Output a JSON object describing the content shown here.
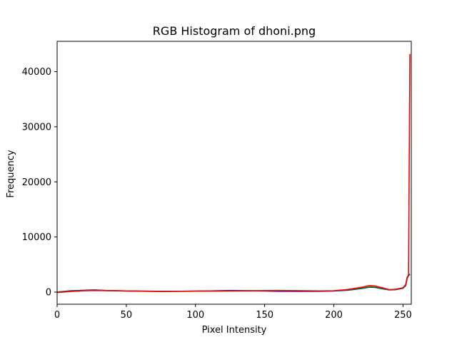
{
  "chart_data": {
    "type": "line",
    "title": "RGB Histogram of dhoni.png",
    "xlabel": "Pixel Intensity",
    "ylabel": "Frequency",
    "xlim": [
      0,
      256
    ],
    "ylim": [
      -2200,
      45500
    ],
    "xticks": [
      0,
      50,
      100,
      150,
      200,
      250
    ],
    "yticks": [
      0,
      10000,
      20000,
      30000,
      40000
    ],
    "grid": false,
    "legend": "none",
    "series": [
      {
        "color": "#0000ff",
        "points": [
          [
            0,
            0
          ],
          [
            10,
            250
          ],
          [
            20,
            330
          ],
          [
            27,
            400
          ],
          [
            35,
            300
          ],
          [
            50,
            220
          ],
          [
            60,
            180
          ],
          [
            75,
            130
          ],
          [
            90,
            160
          ],
          [
            110,
            220
          ],
          [
            125,
            300
          ],
          [
            140,
            250
          ],
          [
            150,
            200
          ],
          [
            160,
            150
          ],
          [
            175,
            140
          ],
          [
            190,
            150
          ],
          [
            200,
            200
          ],
          [
            210,
            350
          ],
          [
            220,
            650
          ],
          [
            226,
            900
          ],
          [
            230,
            850
          ],
          [
            235,
            600
          ],
          [
            240,
            400
          ],
          [
            245,
            450
          ],
          [
            250,
            700
          ],
          [
            252,
            1200
          ],
          [
            253,
            2500
          ],
          [
            254,
            3000
          ],
          [
            255,
            3200
          ]
        ]
      },
      {
        "color": "#008000",
        "points": [
          [
            0,
            0
          ],
          [
            10,
            200
          ],
          [
            20,
            280
          ],
          [
            27,
            330
          ],
          [
            35,
            280
          ],
          [
            50,
            200
          ],
          [
            60,
            170
          ],
          [
            75,
            120
          ],
          [
            90,
            140
          ],
          [
            110,
            200
          ],
          [
            125,
            220
          ],
          [
            140,
            250
          ],
          [
            150,
            280
          ],
          [
            160,
            300
          ],
          [
            175,
            260
          ],
          [
            190,
            210
          ],
          [
            200,
            250
          ],
          [
            210,
            400
          ],
          [
            220,
            700
          ],
          [
            226,
            950
          ],
          [
            230,
            880
          ],
          [
            235,
            650
          ],
          [
            240,
            420
          ],
          [
            245,
            480
          ],
          [
            250,
            750
          ],
          [
            252,
            1300
          ],
          [
            253,
            2600
          ],
          [
            254,
            3100
          ],
          [
            255,
            3300
          ]
        ]
      },
      {
        "color": "#ff0000",
        "points": [
          [
            0,
            -80
          ],
          [
            10,
            120
          ],
          [
            20,
            250
          ],
          [
            27,
            300
          ],
          [
            35,
            260
          ],
          [
            50,
            210
          ],
          [
            60,
            170
          ],
          [
            75,
            150
          ],
          [
            90,
            160
          ],
          [
            110,
            180
          ],
          [
            125,
            210
          ],
          [
            140,
            220
          ],
          [
            150,
            230
          ],
          [
            160,
            230
          ],
          [
            175,
            220
          ],
          [
            190,
            190
          ],
          [
            200,
            240
          ],
          [
            210,
            480
          ],
          [
            220,
            880
          ],
          [
            226,
            1200
          ],
          [
            230,
            1100
          ],
          [
            235,
            800
          ],
          [
            240,
            450
          ],
          [
            245,
            520
          ],
          [
            250,
            800
          ],
          [
            252,
            1400
          ],
          [
            253,
            2700
          ],
          [
            254,
            3100
          ],
          [
            255,
            43200
          ]
        ]
      }
    ]
  }
}
